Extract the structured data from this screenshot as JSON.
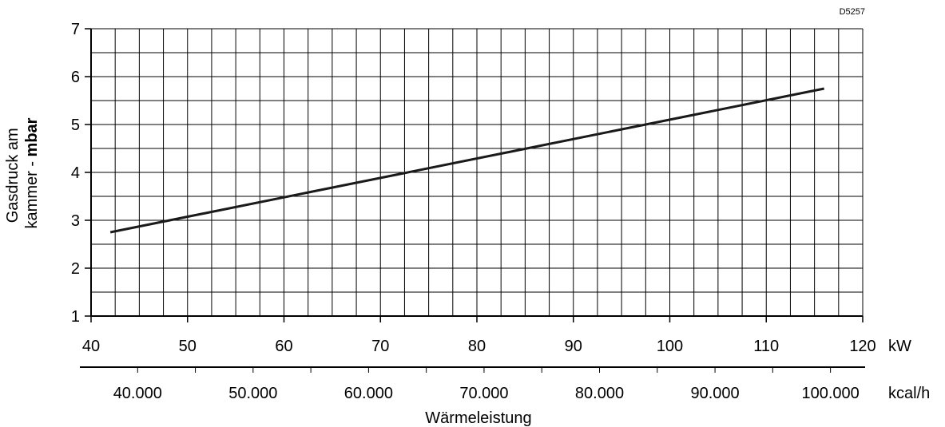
{
  "chart_data": {
    "type": "line",
    "code": "D5257",
    "ylabel_line1": "Gasdruck am",
    "ylabel_line2_prefix": "kammer - ",
    "ylabel_line2_unit": "mbar",
    "xlabel": "Wärmeleistung",
    "x_unit": "kW",
    "secondary_unit": "kcal/h",
    "xlim": [
      40,
      120
    ],
    "ylim": [
      1,
      7
    ],
    "x_ticks": [
      "40",
      "50",
      "60",
      "70",
      "80",
      "90",
      "100",
      "110",
      "120"
    ],
    "y_ticks": [
      "1",
      "2",
      "3",
      "4",
      "5",
      "6",
      "7"
    ],
    "secondary_ticks": [
      "40.000",
      "50.000",
      "60.000",
      "70.000",
      "80.000",
      "90.000",
      "100.000"
    ],
    "secondary_range_kcal": [
      35000,
      103000
    ],
    "grid": true,
    "series": [
      {
        "x": [
          42,
          116
        ],
        "y": [
          2.75,
          5.75
        ]
      }
    ]
  }
}
